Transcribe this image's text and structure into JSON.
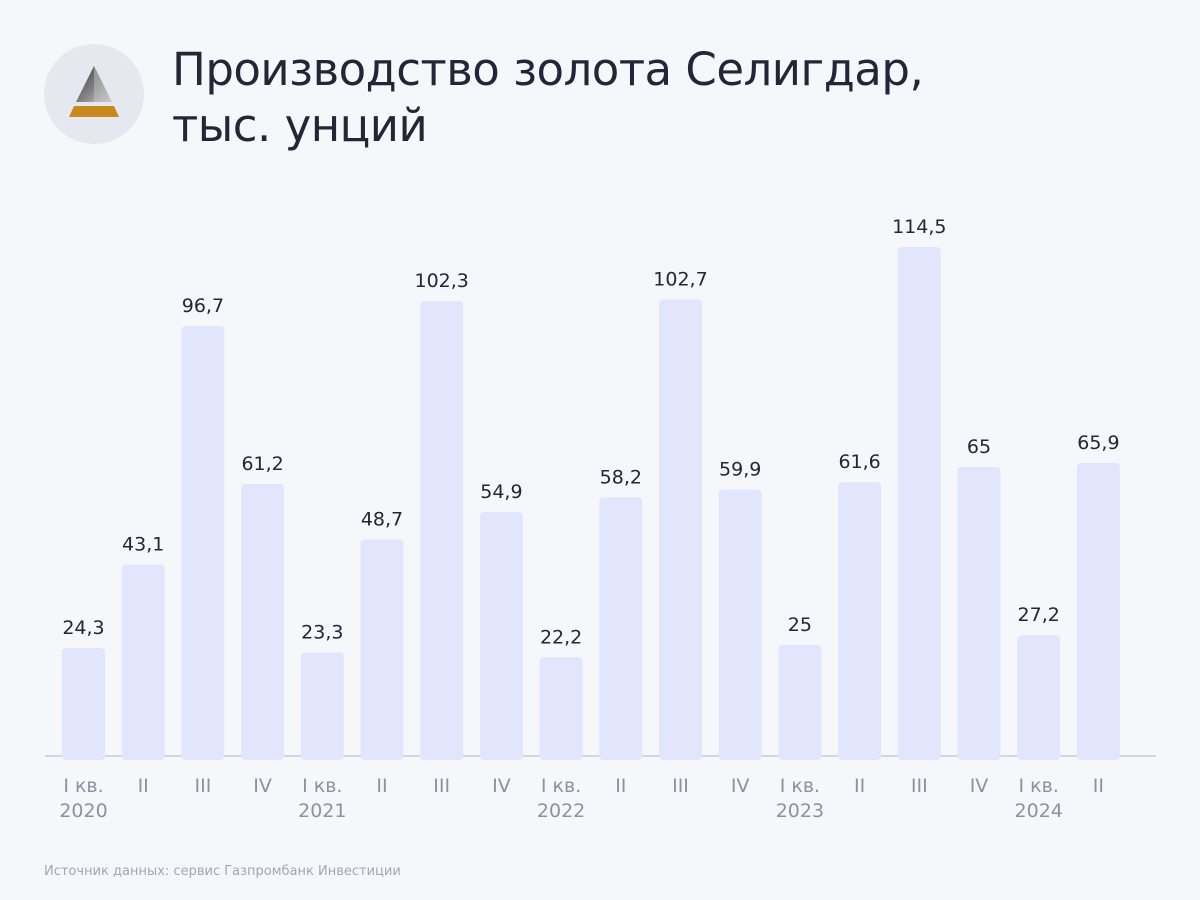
{
  "header": {
    "title_line1": "Производство золота Селигдар,",
    "title_line2": "тыс. унций"
  },
  "footer": {
    "source": "Источник данных: сервис Газпромбанк Инвестиции"
  },
  "colors": {
    "bar": "#e2e6fd",
    "axis": "#c9ccd6",
    "value_label": "#222637",
    "tick_label": "#8d91a0",
    "logo_gold": "#c98a1d"
  },
  "logo": {
    "icon": "pyramid-logo-icon"
  },
  "chart_data": {
    "type": "bar",
    "title": "Производство золота Селигдар, тыс. унций",
    "categories": [
      "I кв.",
      "II",
      "III",
      "IV",
      "I кв.",
      "II",
      "III",
      "IV",
      "I кв.",
      "II",
      "III",
      "IV",
      "I кв.",
      "II",
      "III",
      "IV",
      "I кв.",
      "II"
    ],
    "years": [
      "2020",
      "",
      "",
      "",
      "2021",
      "",
      "",
      "",
      "2022",
      "",
      "",
      "",
      "2023",
      "",
      "",
      "",
      "2024",
      ""
    ],
    "values": [
      24.3,
      43.1,
      96.7,
      61.2,
      23.3,
      48.7,
      102.3,
      54.9,
      22.2,
      58.2,
      102.7,
      59.9,
      25,
      61.6,
      114.5,
      65,
      27.2,
      65.9
    ],
    "value_labels": [
      "24,3",
      "43,1",
      "96,7",
      "61,2",
      "23,3",
      "48,7",
      "102,3",
      "54,9",
      "22,2",
      "58,2",
      "102,7",
      "59,9",
      "25",
      "61,6",
      "114,5",
      "65",
      "27,2",
      "65,9"
    ],
    "xlabel": "",
    "ylabel": "",
    "ylim": [
      0,
      114.5
    ],
    "grid": false
  }
}
